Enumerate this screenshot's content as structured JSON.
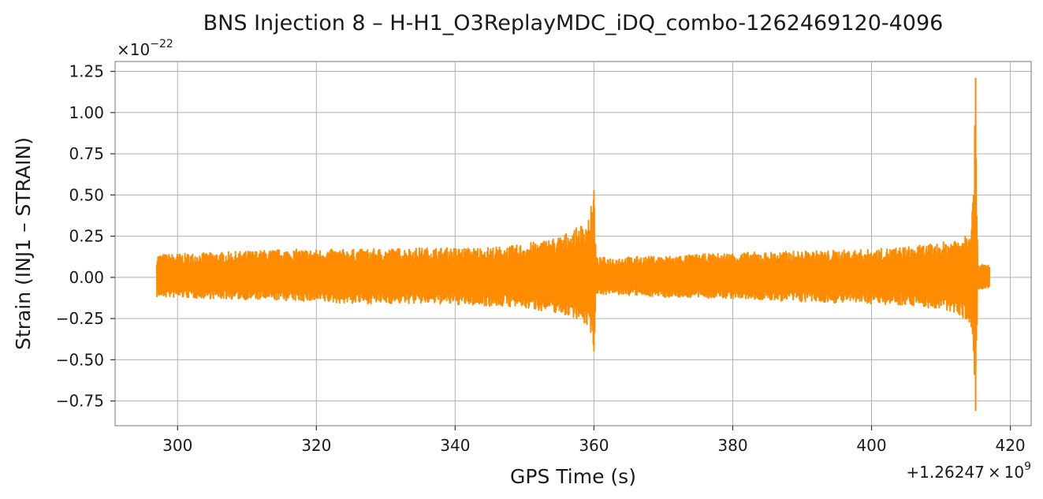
{
  "chart_data": {
    "type": "line",
    "title": "BNS Injection 8 – H-H1_O3ReplayMDC_iDQ_combo-1262469120-4096",
    "xlabel": "GPS Time (s)",
    "ylabel": "Strain (INJ1 – STRAIN)",
    "x_offset_label": {
      "prefix": "+1.26247 × 10",
      "exponent": "9"
    },
    "y_scale_label": {
      "prefix": "×10",
      "exponent": "−22"
    },
    "xlim": [
      291,
      423
    ],
    "ylim": [
      -0.9,
      1.31
    ],
    "x_ticks": [
      300,
      320,
      340,
      360,
      380,
      400,
      420
    ],
    "y_ticks": [
      -0.75,
      -0.5,
      -0.25,
      0.0,
      0.25,
      0.5,
      0.75,
      1.0,
      1.25
    ],
    "x_tick_labels": [
      "300",
      "320",
      "340",
      "360",
      "380",
      "400",
      "420"
    ],
    "y_tick_labels": [
      "−0.75",
      "−0.50",
      "−0.25",
      "0.00",
      "0.25",
      "0.50",
      "0.75",
      "1.00",
      "1.25"
    ],
    "grid": true,
    "series": [
      {
        "color": "#ff8c00",
        "envelope": [
          {
            "x": 297.0,
            "upper": 0.14,
            "lower": -0.12
          },
          {
            "x": 305.0,
            "upper": 0.15,
            "lower": -0.13
          },
          {
            "x": 315.0,
            "upper": 0.17,
            "lower": -0.14
          },
          {
            "x": 325.0,
            "upper": 0.17,
            "lower": -0.16
          },
          {
            "x": 335.0,
            "upper": 0.18,
            "lower": -0.16
          },
          {
            "x": 342.0,
            "upper": 0.18,
            "lower": -0.17
          },
          {
            "x": 348.0,
            "upper": 0.19,
            "lower": -0.18
          },
          {
            "x": 352.0,
            "upper": 0.22,
            "lower": -0.2
          },
          {
            "x": 355.0,
            "upper": 0.25,
            "lower": -0.22
          },
          {
            "x": 357.5,
            "upper": 0.3,
            "lower": -0.25
          },
          {
            "x": 359.0,
            "upper": 0.35,
            "lower": -0.3
          },
          {
            "x": 359.7,
            "upper": 0.45,
            "lower": -0.35
          },
          {
            "x": 360.0,
            "upper": 0.53,
            "lower": -0.45
          },
          {
            "x": 360.3,
            "upper": 0.12,
            "lower": -0.1
          },
          {
            "x": 370.0,
            "upper": 0.13,
            "lower": -0.12
          },
          {
            "x": 380.0,
            "upper": 0.15,
            "lower": -0.13
          },
          {
            "x": 390.0,
            "upper": 0.16,
            "lower": -0.15
          },
          {
            "x": 400.0,
            "upper": 0.17,
            "lower": -0.16
          },
          {
            "x": 406.0,
            "upper": 0.19,
            "lower": -0.17
          },
          {
            "x": 410.0,
            "upper": 0.21,
            "lower": -0.2
          },
          {
            "x": 412.5,
            "upper": 0.25,
            "lower": -0.22
          },
          {
            "x": 414.0,
            "upper": 0.3,
            "lower": -0.28
          },
          {
            "x": 414.7,
            "upper": 0.5,
            "lower": -0.45
          },
          {
            "x": 415.0,
            "upper": 1.21,
            "lower": -0.81
          },
          {
            "x": 415.3,
            "upper": 0.08,
            "lower": -0.08
          },
          {
            "x": 417.0,
            "upper": 0.08,
            "lower": -0.07
          }
        ]
      }
    ]
  }
}
